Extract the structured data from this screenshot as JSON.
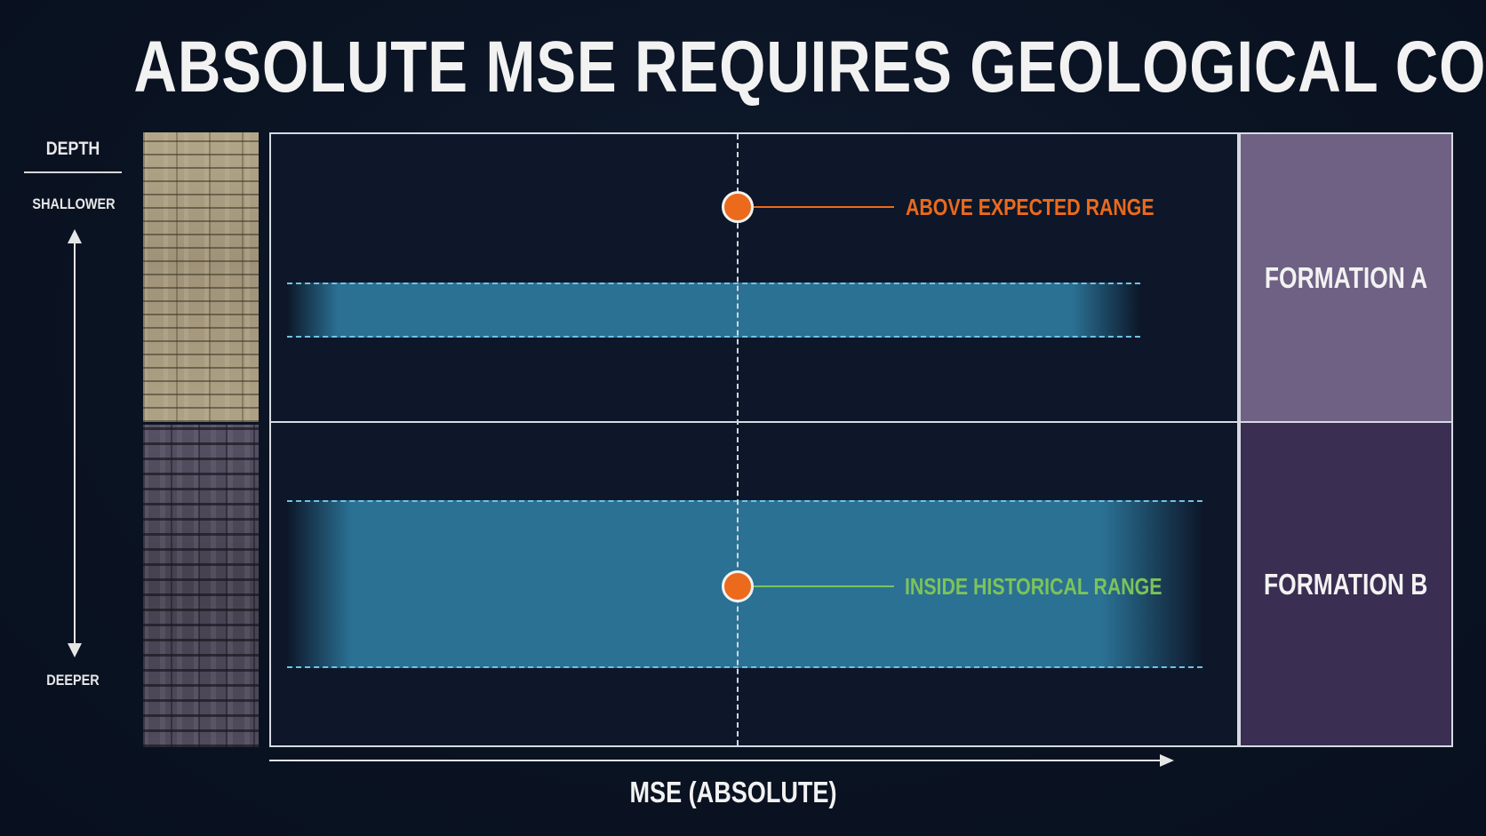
{
  "title": "ABSOLUTE MSE REQUIRES GEOLOGICAL CONTEXT.",
  "depth_axis": {
    "label": "DEPTH",
    "top_label": "SHALLOWER",
    "bottom_label": "DEEPER"
  },
  "x_axis": {
    "label": "MSE (ABSOLUTE)"
  },
  "formations": [
    {
      "name": "FORMATION A",
      "color": "#6e6184",
      "rock_texture": "light-sandstone-bricks"
    },
    {
      "name": "FORMATION B",
      "color": "#3a2e52",
      "rock_texture": "dark-shale-bricks"
    }
  ],
  "callouts": [
    {
      "text": "ABOVE EXPECTED RANGE",
      "color": "#ec6a1c",
      "formation": "FORMATION A"
    },
    {
      "text": "INSIDE HISTORICAL RANGE",
      "color": "#7cc35a",
      "formation": "FORMATION B"
    }
  ],
  "colors": {
    "background": "#0b1424",
    "range_band": "#2c769a",
    "band_edge": "#6fc3e6",
    "point": "#ec6a1c"
  }
}
